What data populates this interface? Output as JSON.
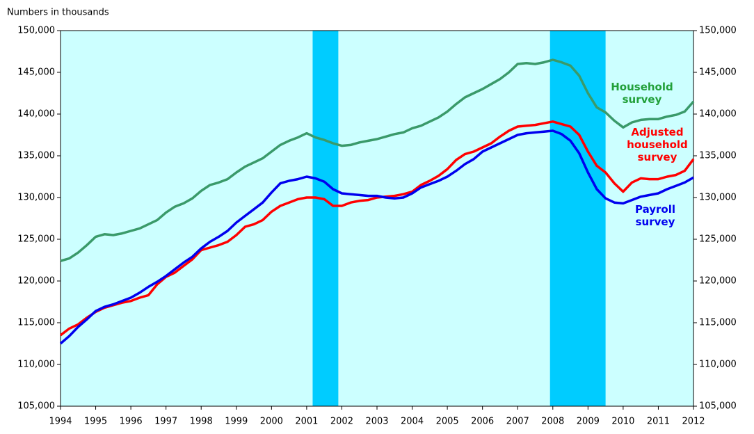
{
  "chart_data": {
    "type": "line",
    "note": "Numbers in thousands",
    "x": [
      1994,
      1994.25,
      1994.5,
      1994.75,
      1995,
      1995.25,
      1995.5,
      1995.75,
      1996,
      1996.25,
      1996.5,
      1996.75,
      1997,
      1997.25,
      1997.5,
      1997.75,
      1998,
      1998.25,
      1998.5,
      1998.75,
      1999,
      1999.25,
      1999.5,
      1999.75,
      2000,
      2000.25,
      2000.5,
      2000.75,
      2001,
      2001.25,
      2001.5,
      2001.75,
      2002,
      2002.25,
      2002.5,
      2002.75,
      2003,
      2003.25,
      2003.5,
      2003.75,
      2004,
      2004.25,
      2004.5,
      2004.75,
      2005,
      2005.25,
      2005.5,
      2005.75,
      2006,
      2006.25,
      2006.5,
      2006.75,
      2007,
      2007.25,
      2007.5,
      2007.75,
      2008,
      2008.25,
      2008.5,
      2008.75,
      2009,
      2009.25,
      2009.5,
      2009.75,
      2010,
      2010.25,
      2010.5,
      2010.75,
      2011,
      2011.25,
      2011.5,
      2011.75,
      2012
    ],
    "series": [
      {
        "name": "Household survey",
        "color": "#3a9a6a",
        "label_color": "#22a03a",
        "values": [
          122400,
          122700,
          123400,
          124300,
          125300,
          125600,
          125500,
          125700,
          126000,
          126300,
          126800,
          127300,
          128200,
          128900,
          129300,
          129900,
          130800,
          131500,
          131800,
          132200,
          133000,
          133700,
          134200,
          134700,
          135500,
          136300,
          136800,
          137200,
          137700,
          137200,
          136900,
          136500,
          136200,
          136300,
          136600,
          136800,
          137000,
          137300,
          137600,
          137800,
          138300,
          138600,
          139100,
          139600,
          140300,
          141200,
          142000,
          142500,
          143000,
          143600,
          144200,
          145000,
          146000,
          146100,
          146000,
          146200,
          146500,
          146200,
          145800,
          144600,
          142500,
          140800,
          140200,
          139200,
          138400,
          139000,
          139300,
          139400,
          139400,
          139700,
          139900,
          140300,
          141500
        ]
      },
      {
        "name": "Adjusted household survey",
        "color": "#ff0000",
        "label_color": "#ff0000",
        "values": [
          113500,
          114300,
          114800,
          115600,
          116300,
          116800,
          117100,
          117400,
          117600,
          118000,
          118300,
          119600,
          120500,
          121000,
          121800,
          122600,
          123700,
          124000,
          124300,
          124700,
          125500,
          126500,
          126800,
          127300,
          128300,
          129000,
          129400,
          129800,
          130000,
          130000,
          129800,
          129000,
          129000,
          129400,
          129600,
          129700,
          130000,
          130100,
          130200,
          130400,
          130700,
          131500,
          132000,
          132600,
          133400,
          134500,
          135200,
          135500,
          136000,
          136500,
          137300,
          138000,
          138500,
          138600,
          138700,
          138900,
          139100,
          138800,
          138500,
          137500,
          135500,
          133800,
          133000,
          131700,
          130700,
          131800,
          132300,
          132200,
          132200,
          132500,
          132700,
          133200,
          134600
        ]
      },
      {
        "name": "Payroll survey",
        "color": "#0000ee",
        "label_color": "#0000ee",
        "values": [
          112500,
          113400,
          114500,
          115400,
          116400,
          116900,
          117200,
          117600,
          118000,
          118600,
          119300,
          119900,
          120600,
          121400,
          122200,
          122900,
          123900,
          124700,
          125300,
          126000,
          127000,
          127800,
          128600,
          129400,
          130600,
          131700,
          132000,
          132200,
          132500,
          132300,
          131900,
          131000,
          130500,
          130400,
          130300,
          130200,
          130200,
          130000,
          129900,
          130000,
          130500,
          131200,
          131600,
          132000,
          132500,
          133200,
          134000,
          134600,
          135500,
          136000,
          136500,
          137000,
          137500,
          137700,
          137800,
          137900,
          138000,
          137600,
          136800,
          135300,
          133000,
          131000,
          129900,
          129400,
          129300,
          129700,
          130100,
          130300,
          130500,
          131000,
          131400,
          131800,
          132400
        ]
      }
    ],
    "recessions": [
      [
        2001.17,
        2001.9
      ],
      [
        2007.92,
        2009.5
      ]
    ],
    "background_color": "#ccffff",
    "recession_color": "#00ccff",
    "xlim": [
      1994,
      2012
    ],
    "xticks": [
      1994,
      1995,
      1996,
      1997,
      1998,
      1999,
      2000,
      2001,
      2002,
      2003,
      2004,
      2005,
      2006,
      2007,
      2008,
      2009,
      2010,
      2011,
      2012
    ],
    "ylim": [
      105000,
      150000
    ],
    "yticks": [
      {
        "value": 105000,
        "label": "105,000"
      },
      {
        "value": 110000,
        "label": "110,000"
      },
      {
        "value": 115000,
        "label": "115,000"
      },
      {
        "value": 120000,
        "label": "120,000"
      },
      {
        "value": 125000,
        "label": "125,000"
      },
      {
        "value": 130000,
        "label": "130,000"
      },
      {
        "value": 135000,
        "label": "135,000"
      },
      {
        "value": 140000,
        "label": "140,000"
      },
      {
        "value": 145000,
        "label": "145,000"
      },
      {
        "value": 150000,
        "label": "150,000"
      }
    ],
    "right_axis": true
  }
}
